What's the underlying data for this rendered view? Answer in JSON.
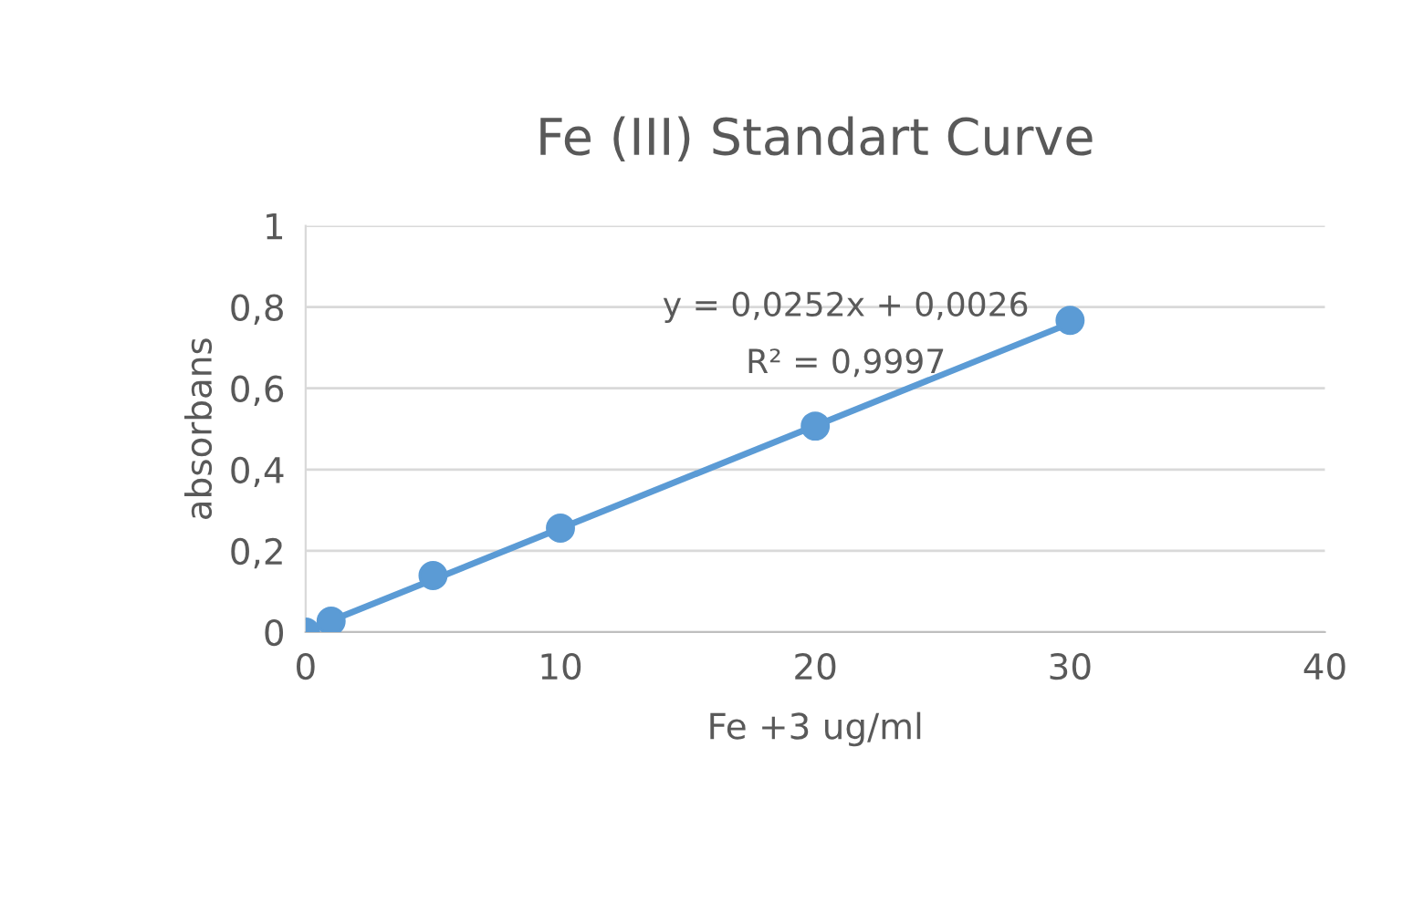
{
  "chart_data": {
    "type": "scatter",
    "title": "Fe (III) Standart Curve",
    "xlabel": "Fe +3 ug/ml",
    "ylabel": "absorbans",
    "series": [
      {
        "color": "#5b9bd5",
        "x": [
          0,
          1,
          5,
          10,
          20,
          30
        ],
        "values": [
          0,
          0.027,
          0.139,
          0.256,
          0.507,
          0.767
        ],
        "marker": "circle"
      },
      {
        "type": "line",
        "color": "#5b9bd5",
        "x": [
          0,
          30
        ],
        "values": [
          0.003,
          0.76
        ],
        "line_style": "solid"
      }
    ],
    "annotations": [
      "y = 0,0252x + 0,0026",
      "R² = 0,9997"
    ],
    "xlim": [
      0,
      40
    ],
    "xticks": [
      0,
      10,
      20,
      30,
      40
    ],
    "ylim": [
      0,
      1
    ],
    "yticks": [
      0,
      {
        "value": 0.2,
        "label": "0,2"
      },
      {
        "value": 0.4,
        "label": "0,4"
      },
      {
        "value": 0.6,
        "label": "0,6"
      },
      {
        "value": 0.8,
        "label": "0,8"
      },
      1
    ],
    "grid": "y",
    "legend": false
  }
}
